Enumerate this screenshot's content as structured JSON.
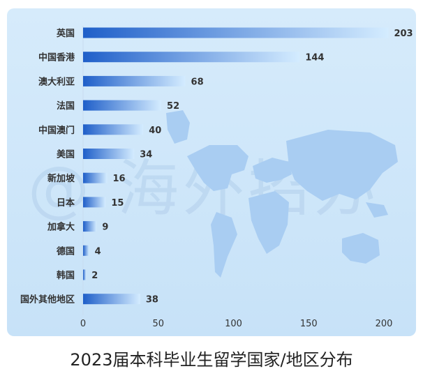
{
  "caption": "2023届本科毕业生留学国家/地区分布",
  "watermark": "@ 海外招办",
  "chart_data": {
    "type": "bar",
    "orientation": "horizontal",
    "title": "2023届本科毕业生留学国家/地区分布",
    "categories": [
      "英国",
      "中国香港",
      "澳大利亚",
      "法国",
      "中国澳门",
      "美国",
      "新加坡",
      "日本",
      "加拿大",
      "德国",
      "韩国",
      "国外其他地区"
    ],
    "values": [
      203,
      144,
      68,
      52,
      40,
      34,
      16,
      15,
      9,
      4,
      2,
      38
    ],
    "xlim": [
      0,
      210
    ],
    "xticks": [
      0,
      50,
      100,
      150,
      200
    ],
    "grid": false,
    "colors": {
      "bar_start": "#1f5fc9",
      "bar_end": "#d4ecff",
      "label": "#333333",
      "value": "#333333",
      "map": "#a9cdf2"
    }
  }
}
